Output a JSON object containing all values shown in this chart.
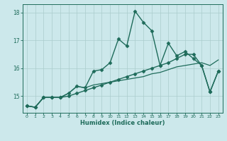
{
  "xlabel": "Humidex (Indice chaleur)",
  "ylabel": "",
  "background_color": "#cce8eb",
  "grid_color": "#aacccc",
  "line_color": "#1e6b5a",
  "xlim": [
    -0.5,
    23.5
  ],
  "ylim": [
    14.4,
    18.3
  ],
  "x_ticks": [
    0,
    1,
    2,
    3,
    4,
    5,
    6,
    7,
    8,
    9,
    10,
    11,
    12,
    13,
    14,
    15,
    16,
    17,
    18,
    19,
    20,
    21,
    22,
    23
  ],
  "y_ticks": [
    15,
    16,
    17,
    18
  ],
  "series": [
    {
      "x": [
        0,
        1,
        2,
        3,
        4,
        5,
        6,
        7,
        8,
        9,
        10,
        11,
        12,
        13,
        14,
        15,
        16,
        17,
        18,
        19,
        20,
        21,
        22,
        23
      ],
      "y": [
        14.65,
        14.6,
        14.95,
        14.95,
        14.95,
        15.1,
        15.35,
        15.3,
        15.9,
        15.95,
        16.2,
        17.05,
        16.8,
        18.05,
        17.65,
        17.35,
        16.1,
        16.9,
        16.45,
        16.6,
        16.35,
        16.1,
        15.15,
        15.9
      ],
      "marker": "D",
      "markersize": 2.5,
      "linewidth": 1.0
    },
    {
      "x": [
        0,
        1,
        2,
        3,
        4,
        5,
        6,
        7,
        8,
        9,
        10,
        11,
        12,
        13,
        14,
        15,
        16,
        17,
        18,
        19,
        20,
        21,
        22,
        23
      ],
      "y": [
        14.65,
        14.6,
        14.95,
        14.95,
        14.95,
        15.1,
        15.35,
        15.3,
        15.4,
        15.45,
        15.5,
        15.55,
        15.6,
        15.65,
        15.7,
        15.8,
        15.85,
        15.95,
        16.05,
        16.1,
        16.15,
        16.2,
        16.1,
        16.3
      ],
      "marker": null,
      "markersize": 0,
      "linewidth": 0.9
    },
    {
      "x": [
        0,
        1,
        2,
        3,
        4,
        5,
        6,
        7,
        8,
        9,
        10,
        11,
        12,
        13,
        14,
        15,
        16,
        17,
        18,
        19,
        20,
        21,
        22,
        23
      ],
      "y": [
        14.65,
        14.6,
        14.95,
        14.95,
        14.95,
        15.0,
        15.1,
        15.2,
        15.3,
        15.4,
        15.5,
        15.6,
        15.7,
        15.8,
        15.9,
        16.0,
        16.1,
        16.2,
        16.35,
        16.5,
        16.5,
        16.1,
        15.15,
        15.9
      ],
      "marker": "D",
      "markersize": 2.5,
      "linewidth": 1.0
    }
  ]
}
